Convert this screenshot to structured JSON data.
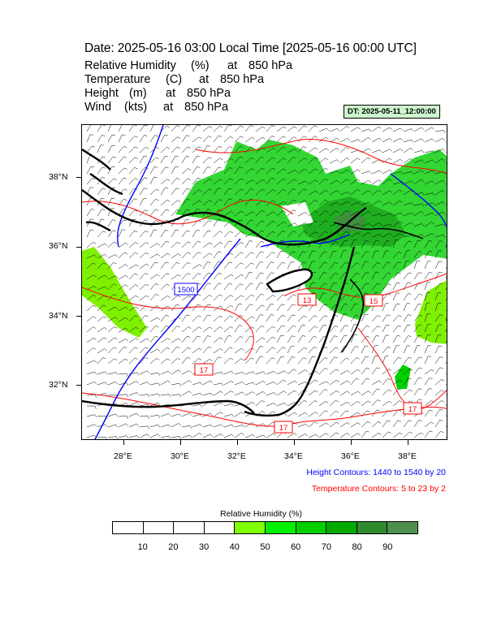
{
  "title": "Date: 2025-05-16  03:00 Local Time [2025-05-16  00:00 UTC]",
  "fields": [
    {
      "name": "Relative Humidity",
      "unit": "(%)",
      "at": "at",
      "level": "850 hPa"
    },
    {
      "name": "Temperature",
      "unit": "(C)",
      "at": "at",
      "level": "850 hPa"
    },
    {
      "name": "Height",
      "unit": "(m)",
      "at": "at",
      "level": "850 hPa"
    },
    {
      "name": "Wind",
      "unit": "(kts)",
      "at": "at",
      "level": "850 hPa"
    }
  ],
  "dt_badge": "DT: 2025-05-11_12:00:00",
  "map": {
    "lon_range": [
      26.7,
      39.4
    ],
    "lat_range": [
      30.5,
      39.5
    ],
    "lat_ticks": [
      "38°N",
      "36°N",
      "34°N",
      "32°N"
    ],
    "lon_ticks": [
      "28°E",
      "30°E",
      "32°E",
      "34°E",
      "36°E",
      "38°E"
    ],
    "height_contour_label": "1500",
    "temperature_contour_labels": [
      "13",
      "15",
      "17",
      "17",
      "17"
    ],
    "colors": {
      "height": "#0000ff",
      "temperature": "#ff0000",
      "coastline": "#000000",
      "rh_40_50": "#7fff00",
      "rh_50_60": "#00ff00",
      "rh_60_70": "#00e000",
      "rh_70_80": "#00b400",
      "rh_80_90": "#009600",
      "rh_90_100": "#4a8a4a"
    }
  },
  "notes": {
    "height": "Height Contours: 1440 to 1540 by 20",
    "temperature": "Temperature Contours: 5 to 23 by 2"
  },
  "colorbar": {
    "title": "Relative Humidity  (%)",
    "colors": [
      "#ffffff",
      "#ffffff",
      "#ffffff",
      "#ffffff",
      "#7fff00",
      "#00f000",
      "#00d000",
      "#00aa00",
      "#2e8b2e",
      "#4f8f4f"
    ],
    "labels": [
      "10",
      "20",
      "30",
      "40",
      "50",
      "60",
      "70",
      "80",
      "90"
    ]
  }
}
